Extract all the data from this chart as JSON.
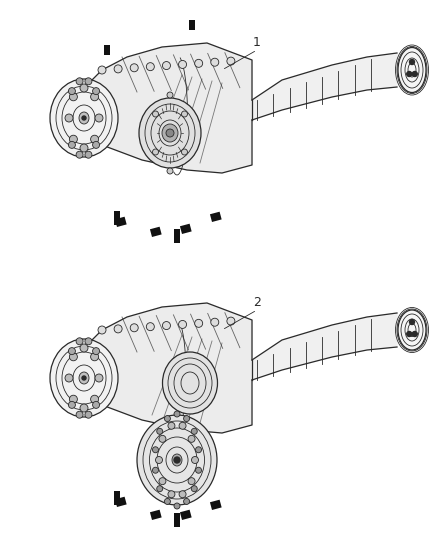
{
  "background_color": "#ffffff",
  "line_color": "#2a2a2a",
  "label_color": "#2a2a2a",
  "label1": "1",
  "label2": "2",
  "fig_width": 4.38,
  "fig_height": 5.33,
  "dpi": 100,
  "gray_light": "#e8e8e8",
  "gray_mid": "#c8c8c8",
  "gray_dark": "#a0a0a0",
  "black": "#111111"
}
